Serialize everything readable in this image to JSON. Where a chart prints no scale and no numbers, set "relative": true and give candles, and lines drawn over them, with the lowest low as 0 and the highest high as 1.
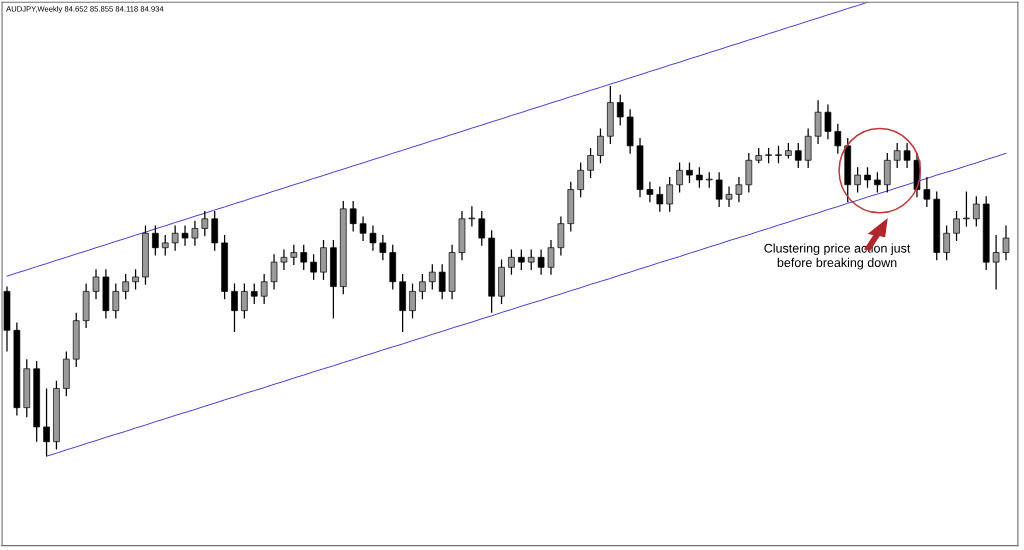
{
  "chart_data": {
    "type": "candlestick",
    "relative": true,
    "title": "AUDJPY,Weekly 84.652 85.855 84.118 84.934",
    "categories": [
      null,
      null,
      null,
      null,
      null,
      null,
      null,
      null,
      null,
      null,
      null,
      null,
      null,
      null,
      null,
      null,
      null,
      null,
      null,
      null,
      null,
      null,
      null,
      null,
      null,
      null,
      null,
      null,
      null,
      null,
      null,
      null,
      null,
      null,
      null,
      null,
      null,
      null,
      null,
      null,
      null,
      null,
      null,
      null,
      null,
      null,
      null,
      null,
      null,
      null,
      null,
      null,
      null,
      null,
      null,
      null,
      null,
      null,
      null,
      null,
      null,
      null,
      null,
      null,
      null,
      null,
      null,
      null,
      null,
      null,
      null,
      null,
      null,
      null,
      null,
      null,
      null,
      null,
      null,
      null,
      null,
      null,
      null,
      null,
      null,
      null,
      null,
      null,
      null,
      null,
      null,
      null,
      null,
      null,
      null,
      null,
      null,
      null,
      null,
      null,
      null,
      null
    ],
    "ohlc": [
      [
        0.445,
        0.458,
        0.283,
        0.34
      ],
      [
        0.34,
        0.361,
        0.11,
        0.131
      ],
      [
        0.131,
        0.262,
        0.105,
        0.236
      ],
      [
        0.236,
        0.257,
        0.039,
        0.079
      ],
      [
        0.079,
        0.183,
        0,
        0.039
      ],
      [
        0.039,
        0.204,
        0.018,
        0.183
      ],
      [
        0.183,
        0.283,
        0.162,
        0.262
      ],
      [
        0.262,
        0.387,
        0.241,
        0.366
      ],
      [
        0.366,
        0.466,
        0.346,
        0.445
      ],
      [
        0.445,
        0.505,
        0.424,
        0.484
      ],
      [
        0.484,
        0.505,
        0.372,
        0.393
      ],
      [
        0.393,
        0.466,
        0.372,
        0.445
      ],
      [
        0.445,
        0.492,
        0.424,
        0.471
      ],
      [
        0.471,
        0.505,
        0.45,
        0.484
      ],
      [
        0.484,
        0.623,
        0.463,
        0.602
      ],
      [
        0.602,
        0.623,
        0.542,
        0.563
      ],
      [
        0.563,
        0.597,
        0.542,
        0.576
      ],
      [
        0.576,
        0.623,
        0.555,
        0.602
      ],
      [
        0.602,
        0.623,
        0.568,
        0.589
      ],
      [
        0.589,
        0.636,
        0.568,
        0.615
      ],
      [
        0.615,
        0.662,
        0.594,
        0.641
      ],
      [
        0.641,
        0.662,
        0.555,
        0.576
      ],
      [
        0.576,
        0.597,
        0.424,
        0.445
      ],
      [
        0.445,
        0.466,
        0.335,
        0.393
      ],
      [
        0.393,
        0.466,
        0.372,
        0.445
      ],
      [
        0.445,
        0.466,
        0.411,
        0.432
      ],
      [
        0.432,
        0.492,
        0.411,
        0.471
      ],
      [
        0.471,
        0.545,
        0.45,
        0.524
      ],
      [
        0.524,
        0.558,
        0.503,
        0.537
      ],
      [
        0.537,
        0.571,
        0.516,
        0.55
      ],
      [
        0.55,
        0.571,
        0.503,
        0.524
      ],
      [
        0.524,
        0.545,
        0.476,
        0.497
      ],
      [
        0.497,
        0.584,
        0.476,
        0.563
      ],
      [
        0.563,
        0.584,
        0.372,
        0.458
      ],
      [
        0.458,
        0.689,
        0.437,
        0.668
      ],
      [
        0.668,
        0.689,
        0.607,
        0.628
      ],
      [
        0.628,
        0.647,
        0.581,
        0.602
      ],
      [
        0.602,
        0.623,
        0.555,
        0.576
      ],
      [
        0.576,
        0.597,
        0.529,
        0.55
      ],
      [
        0.55,
        0.571,
        0.45,
        0.471
      ],
      [
        0.471,
        0.492,
        0.335,
        0.393
      ],
      [
        0.393,
        0.466,
        0.372,
        0.445
      ],
      [
        0.445,
        0.492,
        0.424,
        0.471
      ],
      [
        0.471,
        0.518,
        0.45,
        0.497
      ],
      [
        0.497,
        0.518,
        0.424,
        0.445
      ],
      [
        0.445,
        0.571,
        0.424,
        0.55
      ],
      [
        0.55,
        0.662,
        0.529,
        0.641
      ],
      [
        0.641,
        0.675,
        0.62,
        0.641
      ],
      [
        0.641,
        0.662,
        0.568,
        0.589
      ],
      [
        0.589,
        0.61,
        0.387,
        0.432
      ],
      [
        0.432,
        0.531,
        0.411,
        0.51
      ],
      [
        0.51,
        0.558,
        0.49,
        0.537
      ],
      [
        0.537,
        0.558,
        0.503,
        0.524
      ],
      [
        0.524,
        0.558,
        0.503,
        0.537
      ],
      [
        0.537,
        0.558,
        0.49,
        0.51
      ],
      [
        0.51,
        0.584,
        0.49,
        0.563
      ],
      [
        0.563,
        0.647,
        0.542,
        0.628
      ],
      [
        0.628,
        0.741,
        0.607,
        0.72
      ],
      [
        0.72,
        0.793,
        0.699,
        0.772
      ],
      [
        0.772,
        0.832,
        0.751,
        0.812
      ],
      [
        0.812,
        0.885,
        0.791,
        0.864
      ],
      [
        0.864,
        1,
        0.843,
        0.955
      ],
      [
        0.955,
        0.976,
        0.893,
        0.916
      ],
      [
        0.916,
        0.937,
        0.817,
        0.838
      ],
      [
        0.838,
        0.859,
        0.699,
        0.72
      ],
      [
        0.72,
        0.741,
        0.686,
        0.707
      ],
      [
        0.707,
        0.728,
        0.66,
        0.681
      ],
      [
        0.681,
        0.754,
        0.66,
        0.733
      ],
      [
        0.733,
        0.793,
        0.712,
        0.772
      ],
      [
        0.772,
        0.793,
        0.738,
        0.759
      ],
      [
        0.759,
        0.78,
        0.725,
        0.746
      ],
      [
        0.746,
        0.767,
        0.725,
        0.746
      ],
      [
        0.746,
        0.767,
        0.673,
        0.694
      ],
      [
        0.694,
        0.728,
        0.673,
        0.707
      ],
      [
        0.707,
        0.754,
        0.686,
        0.733
      ],
      [
        0.733,
        0.819,
        0.712,
        0.799
      ],
      [
        0.799,
        0.832,
        0.791,
        0.812
      ],
      [
        0.812,
        0.832,
        0.791,
        0.812
      ],
      [
        0.812,
        0.838,
        0.791,
        0.812
      ],
      [
        0.812,
        0.846,
        0.804,
        0.825
      ],
      [
        0.825,
        0.846,
        0.778,
        0.799
      ],
      [
        0.799,
        0.885,
        0.778,
        0.864
      ],
      [
        0.864,
        0.961,
        0.843,
        0.929
      ],
      [
        0.929,
        0.95,
        0.856,
        0.877
      ],
      [
        0.877,
        0.898,
        0.817,
        0.838
      ],
      [
        0.838,
        0.859,
        0.686,
        0.733
      ],
      [
        0.733,
        0.78,
        0.712,
        0.759
      ],
      [
        0.759,
        0.78,
        0.725,
        0.746
      ],
      [
        0.746,
        0.767,
        0.712,
        0.733
      ],
      [
        0.733,
        0.819,
        0.712,
        0.799
      ],
      [
        0.799,
        0.846,
        0.778,
        0.825
      ],
      [
        0.825,
        0.846,
        0.778,
        0.799
      ],
      [
        0.799,
        0.819,
        0.699,
        0.72
      ],
      [
        0.72,
        0.754,
        0.673,
        0.694
      ],
      [
        0.694,
        0.715,
        0.529,
        0.55
      ],
      [
        0.55,
        0.623,
        0.529,
        0.602
      ],
      [
        0.602,
        0.662,
        0.581,
        0.641
      ],
      [
        0.641,
        0.715,
        0.62,
        0.641
      ],
      [
        0.641,
        0.702,
        0.62,
        0.681
      ],
      [
        0.681,
        0.702,
        0.503,
        0.524
      ],
      [
        0.524,
        0.597,
        0.45,
        0.55
      ],
      [
        0.55,
        0.623,
        0.529,
        0.589
      ]
    ],
    "series": [
      {
        "type": "line",
        "color": "#3a3ad0",
        "values": [
          0.486,
          0.495,
          0.503,
          0.512,
          0.52,
          0.529,
          0.537,
          0.546,
          0.554,
          0.563,
          0.571,
          0.58,
          0.588,
          0.597,
          0.605,
          0.614,
          0.622,
          0.631,
          0.639,
          0.648,
          0.656,
          0.665,
          0.673,
          0.682,
          0.69,
          0.699,
          0.707,
          0.716,
          0.724,
          0.733,
          0.741,
          0.75,
          0.758,
          0.767,
          0.775,
          0.784,
          0.792,
          0.801,
          0.809,
          0.818,
          0.826,
          0.835,
          0.843,
          0.852,
          0.86,
          0.869,
          0.877,
          0.886,
          0.894,
          0.903,
          0.911,
          0.92,
          0.928,
          0.937,
          0.945,
          0.954,
          0.962,
          0.971,
          0.979,
          0.988,
          0.996,
          1.005,
          1.013,
          1.022,
          1.03,
          1.039,
          1.047,
          1.056,
          1.064,
          1.073,
          1.081,
          1.09,
          1.098,
          1.107,
          1.115,
          1.124,
          1.132,
          1.141,
          1.149,
          1.158,
          1.166,
          1.175,
          1.183,
          1.192,
          1.2,
          1.209,
          1.217,
          1.226,
          null,
          null,
          null,
          null,
          null,
          null,
          null,
          null,
          null,
          null,
          null,
          null,
          null,
          null
        ]
      },
      {
        "type": "line",
        "color": "#3a3ad0",
        "values": [
          null,
          null,
          null,
          null,
          0,
          0.008,
          0.017,
          0.025,
          0.034,
          0.042,
          0.051,
          0.059,
          0.067,
          0.076,
          0.084,
          0.093,
          0.101,
          0.11,
          0.118,
          0.126,
          0.135,
          0.143,
          0.152,
          0.16,
          0.169,
          0.177,
          0.185,
          0.194,
          0.202,
          0.211,
          0.219,
          0.228,
          0.236,
          0.244,
          0.253,
          0.261,
          0.27,
          0.278,
          0.287,
          0.295,
          0.303,
          0.312,
          0.32,
          0.329,
          0.337,
          0.346,
          0.354,
          0.362,
          0.371,
          0.379,
          0.388,
          0.396,
          0.405,
          0.413,
          0.421,
          0.43,
          0.438,
          0.447,
          0.455,
          0.464,
          0.472,
          0.48,
          0.489,
          0.497,
          0.506,
          0.514,
          0.523,
          0.531,
          0.539,
          0.548,
          0.556,
          0.565,
          0.573,
          0.582,
          0.59,
          0.598,
          0.607,
          0.615,
          0.624,
          0.632,
          0.641,
          0.649,
          0.657,
          0.666,
          0.674,
          0.683,
          0.691,
          0.7,
          0.708,
          0.716,
          0.725,
          0.733,
          0.742,
          0.75,
          0.759,
          0.767,
          0.775,
          0.784,
          0.792,
          0.801,
          0.809,
          0.818
        ]
      }
    ],
    "annotations": [
      "Clustering price action just\nbefore breaking down"
    ]
  }
}
